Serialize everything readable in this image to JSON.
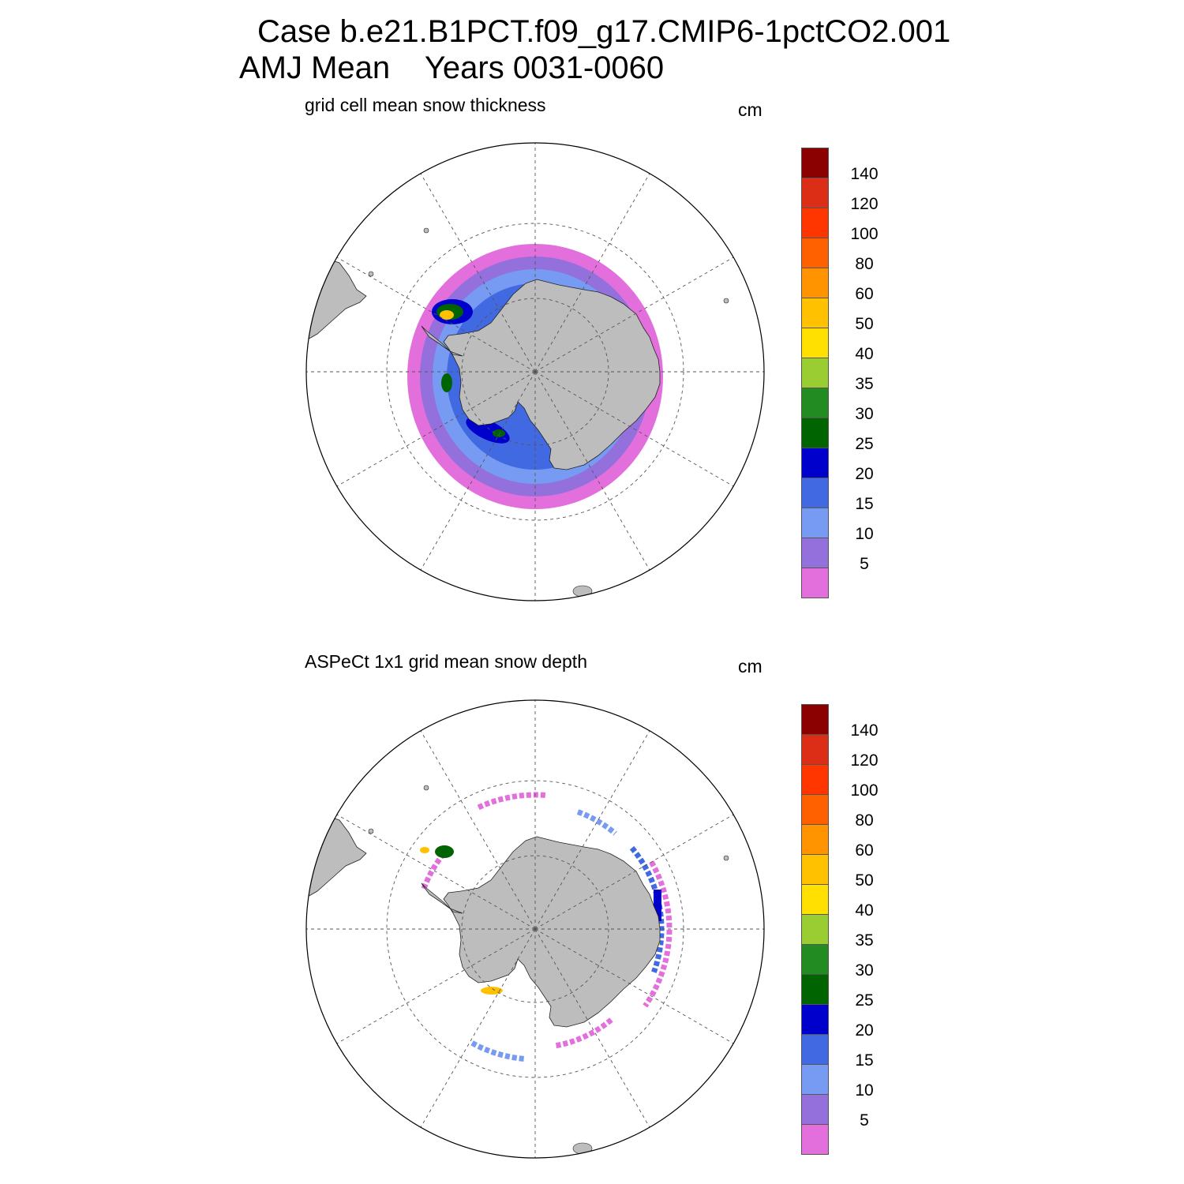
{
  "title": {
    "line1": "Case b.e21.B1PCT.f09_g17.CMIP6-1pctCO2.001",
    "line2": "AMJ Mean    Years 0031-0060"
  },
  "colorbar": {
    "units": "cm",
    "tick_labels": [
      "5",
      "10",
      "15",
      "20",
      "25",
      "30",
      "35",
      "40",
      "50",
      "60",
      "80",
      "100",
      "120",
      "140"
    ],
    "colors": [
      "#e36fdc",
      "#9370db",
      "#779bf2",
      "#4169e1",
      "#0000cd",
      "#006400",
      "#228b22",
      "#9acd32",
      "#ffe000",
      "#ffc100",
      "#ff9400",
      "#ff6100",
      "#ff3600",
      "#dc2d17",
      "#8b0000"
    ]
  },
  "panels": [
    {
      "subtitle": "grid cell mean snow thickness",
      "units": "cm",
      "field": "model"
    },
    {
      "subtitle": "ASPeCt 1x1 grid mean snow depth",
      "units": "cm",
      "field": "observations"
    }
  ],
  "map": {
    "projection": "south polar stereographic",
    "land_color": "#bdbdbd",
    "grid_line_color": "#555555"
  }
}
